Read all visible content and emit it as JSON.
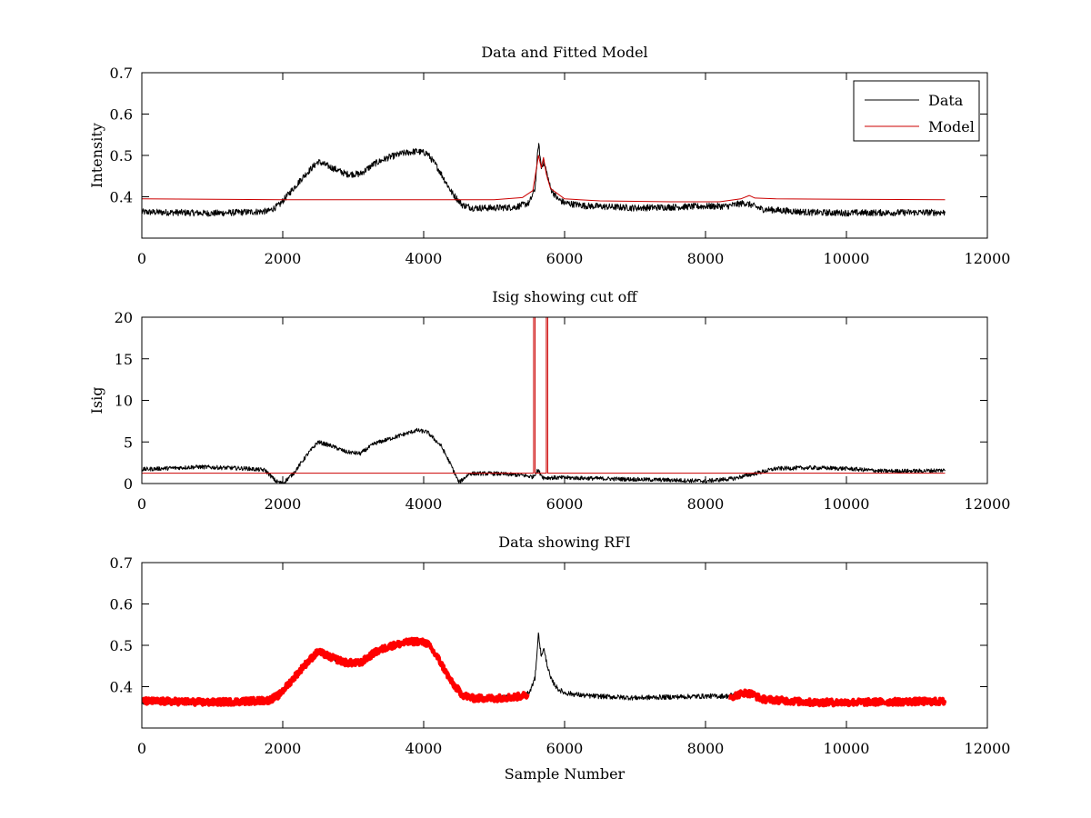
{
  "chart_data": [
    {
      "type": "line",
      "title": "Data and Fitted Model",
      "xlabel": "",
      "ylabel": "Intensity",
      "xlim": [
        0,
        12000
      ],
      "ylim": [
        0.3,
        0.7
      ],
      "xticks": [
        0,
        2000,
        4000,
        6000,
        8000,
        10000,
        12000
      ],
      "yticks": [
        0.4,
        0.5,
        0.6,
        0.7
      ],
      "legend": {
        "placement": "top-right",
        "entries": [
          "Data",
          "Model"
        ]
      },
      "series": [
        {
          "name": "Data",
          "color": "#000000",
          "noise": 0.008,
          "points": [
            [
              0,
              0.363
            ],
            [
              500,
              0.362
            ],
            [
              1000,
              0.36
            ],
            [
              1500,
              0.363
            ],
            [
              1800,
              0.365
            ],
            [
              1950,
              0.38
            ],
            [
              2100,
              0.41
            ],
            [
              2300,
              0.45
            ],
            [
              2500,
              0.485
            ],
            [
              2700,
              0.47
            ],
            [
              2900,
              0.455
            ],
            [
              3100,
              0.455
            ],
            [
              3300,
              0.48
            ],
            [
              3500,
              0.495
            ],
            [
              3700,
              0.505
            ],
            [
              3900,
              0.51
            ],
            [
              4050,
              0.505
            ],
            [
              4200,
              0.47
            ],
            [
              4400,
              0.41
            ],
            [
              4550,
              0.38
            ],
            [
              4700,
              0.373
            ],
            [
              5000,
              0.373
            ],
            [
              5300,
              0.375
            ],
            [
              5500,
              0.385
            ],
            [
              5580,
              0.42
            ],
            [
              5630,
              0.53
            ],
            [
              5670,
              0.47
            ],
            [
              5700,
              0.485
            ],
            [
              5730,
              0.47
            ],
            [
              5800,
              0.42
            ],
            [
              5900,
              0.395
            ],
            [
              6000,
              0.385
            ],
            [
              6300,
              0.378
            ],
            [
              7000,
              0.373
            ],
            [
              7500,
              0.375
            ],
            [
              8000,
              0.377
            ],
            [
              8300,
              0.377
            ],
            [
              8550,
              0.385
            ],
            [
              8650,
              0.38
            ],
            [
              8800,
              0.37
            ],
            [
              9500,
              0.362
            ],
            [
              10000,
              0.361
            ],
            [
              11000,
              0.362
            ],
            [
              11400,
              0.362
            ]
          ]
        },
        {
          "name": "Model",
          "color": "#cc0000",
          "noise": 0,
          "points": [
            [
              0,
              0.395
            ],
            [
              1000,
              0.394
            ],
            [
              2000,
              0.393
            ],
            [
              3000,
              0.393
            ],
            [
              4000,
              0.393
            ],
            [
              5000,
              0.393
            ],
            [
              5400,
              0.398
            ],
            [
              5550,
              0.415
            ],
            [
              5630,
              0.5
            ],
            [
              5670,
              0.47
            ],
            [
              5700,
              0.495
            ],
            [
              5740,
              0.455
            ],
            [
              5800,
              0.42
            ],
            [
              6000,
              0.395
            ],
            [
              6500,
              0.39
            ],
            [
              7500,
              0.388
            ],
            [
              8200,
              0.388
            ],
            [
              8500,
              0.395
            ],
            [
              8620,
              0.403
            ],
            [
              8700,
              0.397
            ],
            [
              9000,
              0.395
            ],
            [
              10000,
              0.394
            ],
            [
              11400,
              0.393
            ]
          ]
        }
      ]
    },
    {
      "type": "line",
      "title": "Isig showing cut off",
      "xlabel": "",
      "ylabel": "Isig",
      "xlim": [
        0,
        12000
      ],
      "ylim": [
        0,
        20
      ],
      "xticks": [
        0,
        2000,
        4000,
        6000,
        8000,
        10000,
        12000
      ],
      "yticks": [
        0,
        5,
        10,
        15,
        20
      ],
      "series": [
        {
          "color": "#000000",
          "noise": 0.25,
          "points": [
            [
              0,
              1.7
            ],
            [
              800,
              2.0
            ],
            [
              1500,
              1.8
            ],
            [
              1750,
              1.6
            ],
            [
              1900,
              0.3
            ],
            [
              2000,
              0.0
            ],
            [
              2150,
              1.2
            ],
            [
              2350,
              3.5
            ],
            [
              2500,
              5.0
            ],
            [
              2700,
              4.5
            ],
            [
              2900,
              3.8
            ],
            [
              3100,
              3.6
            ],
            [
              3300,
              4.8
            ],
            [
              3600,
              5.6
            ],
            [
              3900,
              6.4
            ],
            [
              4050,
              6.2
            ],
            [
              4250,
              4.5
            ],
            [
              4400,
              2.0
            ],
            [
              4500,
              0.1
            ],
            [
              4650,
              1.2
            ],
            [
              5000,
              1.2
            ],
            [
              5400,
              1.0
            ],
            [
              5550,
              0.8
            ],
            [
              5620,
              1.6
            ],
            [
              5700,
              0.7
            ],
            [
              6000,
              0.7
            ],
            [
              7000,
              0.5
            ],
            [
              7600,
              0.4
            ],
            [
              8000,
              0.3
            ],
            [
              8400,
              0.6
            ],
            [
              8700,
              1.2
            ],
            [
              9000,
              1.8
            ],
            [
              9500,
              1.9
            ],
            [
              10000,
              1.8
            ],
            [
              10500,
              1.5
            ],
            [
              11000,
              1.5
            ],
            [
              11400,
              1.6
            ]
          ]
        },
        {
          "color": "#cc0000",
          "noise": 0,
          "points": [
            [
              0,
              1.25
            ],
            [
              5560,
              1.25
            ],
            [
              5560,
              20
            ],
            [
              5580,
              20
            ],
            [
              5580,
              1.25
            ],
            [
              5740,
              1.25
            ],
            [
              5740,
              20
            ],
            [
              5760,
              20
            ],
            [
              5760,
              1.25
            ],
            [
              11400,
              1.25
            ]
          ]
        }
      ]
    },
    {
      "type": "line",
      "title": "Data showing RFI",
      "xlabel": "Sample Number",
      "ylabel": "",
      "xlim": [
        0,
        12000
      ],
      "ylim": [
        0.3,
        0.7
      ],
      "xticks": [
        0,
        2000,
        4000,
        6000,
        8000,
        10000,
        12000
      ],
      "yticks": [
        0.4,
        0.5,
        0.6,
        0.7
      ],
      "series": [
        {
          "color": "#000000",
          "noise": 0.006,
          "points": [
            [
              0,
              0.363
            ],
            [
              500,
              0.362
            ],
            [
              1000,
              0.36
            ],
            [
              1500,
              0.363
            ],
            [
              1800,
              0.365
            ],
            [
              1950,
              0.38
            ],
            [
              2100,
              0.41
            ],
            [
              2300,
              0.45
            ],
            [
              2500,
              0.485
            ],
            [
              2700,
              0.47
            ],
            [
              2900,
              0.455
            ],
            [
              3100,
              0.455
            ],
            [
              3300,
              0.48
            ],
            [
              3500,
              0.495
            ],
            [
              3700,
              0.505
            ],
            [
              3900,
              0.51
            ],
            [
              4050,
              0.505
            ],
            [
              4200,
              0.47
            ],
            [
              4400,
              0.41
            ],
            [
              4550,
              0.38
            ],
            [
              4700,
              0.373
            ],
            [
              5000,
              0.373
            ],
            [
              5300,
              0.375
            ],
            [
              5500,
              0.385
            ],
            [
              5580,
              0.42
            ],
            [
              5630,
              0.53
            ],
            [
              5670,
              0.47
            ],
            [
              5700,
              0.495
            ],
            [
              5730,
              0.47
            ],
            [
              5800,
              0.42
            ],
            [
              5900,
              0.395
            ],
            [
              6000,
              0.385
            ],
            [
              6300,
              0.378
            ],
            [
              7000,
              0.373
            ],
            [
              7500,
              0.375
            ],
            [
              8000,
              0.377
            ],
            [
              8300,
              0.377
            ],
            [
              8550,
              0.385
            ],
            [
              8650,
              0.38
            ],
            [
              8800,
              0.37
            ],
            [
              9500,
              0.362
            ],
            [
              10000,
              0.361
            ],
            [
              11000,
              0.362
            ],
            [
              11400,
              0.362
            ]
          ]
        },
        {
          "color": "#ff0000",
          "noise": 0.008,
          "width": 4,
          "segments": [
            [
              [
                0,
                0.365
              ],
              [
                500,
                0.364
              ],
              [
                1000,
                0.362
              ],
              [
                1500,
                0.365
              ],
              [
                1800,
                0.367
              ],
              [
                1950,
                0.38
              ],
              [
                2100,
                0.41
              ],
              [
                2300,
                0.45
              ],
              [
                2500,
                0.485
              ],
              [
                2700,
                0.47
              ],
              [
                2900,
                0.458
              ],
              [
                3100,
                0.457
              ],
              [
                3300,
                0.482
              ],
              [
                3500,
                0.497
              ],
              [
                3700,
                0.505
              ],
              [
                3900,
                0.51
              ],
              [
                4050,
                0.505
              ],
              [
                4200,
                0.47
              ],
              [
                4400,
                0.41
              ],
              [
                4550,
                0.38
              ],
              [
                4700,
                0.372
              ],
              [
                5000,
                0.372
              ],
              [
                5300,
                0.375
              ],
              [
                5480,
                0.38
              ]
            ],
            [
              [
                8350,
                0.375
              ],
              [
                8550,
                0.385
              ],
              [
                8650,
                0.383
              ],
              [
                8800,
                0.37
              ],
              [
                9500,
                0.362
              ],
              [
                10000,
                0.362
              ],
              [
                11000,
                0.364
              ],
              [
                11400,
                0.364
              ]
            ]
          ]
        }
      ]
    }
  ]
}
